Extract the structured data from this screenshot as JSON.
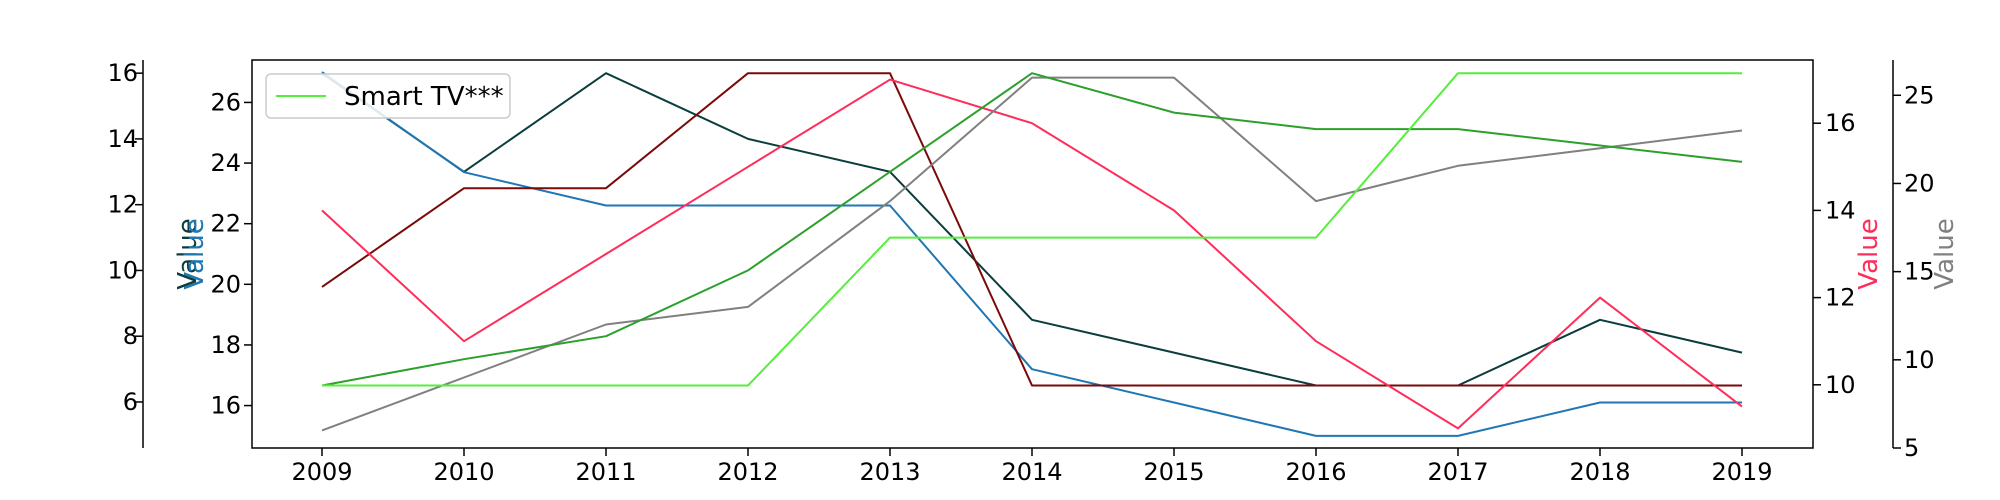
{
  "chart_data": {
    "type": "line",
    "x": [
      2009,
      2010,
      2011,
      2012,
      2013,
      2014,
      2015,
      2016,
      2017,
      2018,
      2019
    ],
    "xticks": [
      "2009",
      "2010",
      "2011",
      "2012",
      "2013",
      "2014",
      "2015",
      "2016",
      "2017",
      "2018",
      "2019"
    ],
    "axes": [
      {
        "id": "left_outer",
        "side": "left",
        "ylim": [
          4.6,
          16.4
        ],
        "ticks": [
          6,
          8,
          10,
          12,
          14,
          16
        ],
        "label": "Value",
        "color": "#0b3d3d"
      },
      {
        "id": "left_inner",
        "side": "left",
        "ylim": [
          14.6,
          27.4
        ],
        "ticks": [
          16,
          18,
          20,
          22,
          24,
          26
        ],
        "label": "Value",
        "color": "#1f77b4"
      },
      {
        "id": "right_inner",
        "side": "right",
        "ylim": [
          8.55,
          17.45
        ],
        "ticks": [
          10,
          12,
          14,
          16
        ],
        "label": "Value",
        "color": "#ff2d5a"
      },
      {
        "id": "right_outer",
        "side": "right",
        "ylim": [
          5,
          27
        ],
        "ticks": [
          5,
          10,
          15,
          20,
          25
        ],
        "label": "Value",
        "color": "#808080"
      }
    ],
    "series": [
      {
        "axis": "left_outer",
        "color": "#0b3d3d",
        "values": [
          16.0,
          13.0,
          16.0,
          14.0,
          13.0,
          8.5,
          7.5,
          6.5,
          6.5,
          8.5,
          7.5
        ]
      },
      {
        "axis": "left_inner",
        "color": "#1f77b4",
        "values": [
          27.0,
          23.7,
          22.6,
          22.6,
          22.6,
          17.2,
          16.1,
          15.0,
          15.0,
          16.1,
          16.1
        ]
      },
      {
        "axis": "left_outer",
        "color": "#7a0a0a",
        "values": [
          9.5,
          12.5,
          12.5,
          16.0,
          16.0,
          6.5,
          6.5,
          6.5,
          6.5,
          6.5,
          6.5
        ]
      },
      {
        "axis": "right_inner",
        "color": "#ff2d5a",
        "values": [
          14.0,
          11.0,
          13.0,
          15.0,
          17.0,
          16.0,
          14.0,
          11.0,
          9.0,
          12.0,
          9.5
        ]
      },
      {
        "axis": "right_outer",
        "color": "#808080",
        "values": [
          6.0,
          9.0,
          12.0,
          13.0,
          19.0,
          26.0,
          26.0,
          19.0,
          21.0,
          22.0,
          23.0
        ]
      },
      {
        "axis": "left_outer",
        "color": "#2ca02c",
        "values": [
          6.5,
          7.3,
          8.0,
          10.0,
          13.0,
          16.0,
          14.8,
          14.3,
          14.3,
          13.8,
          13.3
        ]
      },
      {
        "axis": "left_outer",
        "name": "Smart TV***",
        "color": "#55ee3c",
        "values": [
          6.5,
          6.5,
          6.5,
          6.5,
          11.0,
          11.0,
          11.0,
          11.0,
          16.0,
          16.0,
          16.0
        ]
      }
    ],
    "legend": {
      "placement": "top-left",
      "entries": [
        "Smart TV***"
      ]
    },
    "grid": false
  }
}
